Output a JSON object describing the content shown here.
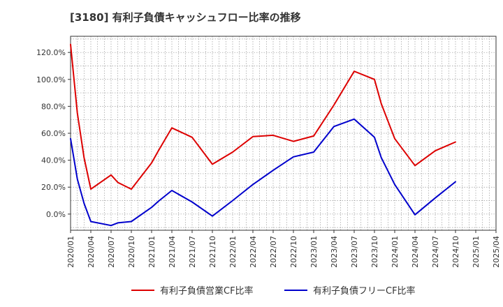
{
  "chart_data": {
    "type": "line",
    "title": "[3180]  有利子負債キャッシュフロー比率の推移",
    "xlabel": "",
    "ylabel": "",
    "ylim": [
      -12,
      132
    ],
    "y_ticks": [
      "0.0%",
      "20.0%",
      "40.0%",
      "60.0%",
      "80.0%",
      "100.0%",
      "120.0%"
    ],
    "x_ticks": [
      "2020/01",
      "2020/04",
      "2020/07",
      "2020/10",
      "2021/01",
      "2021/04",
      "2021/07",
      "2021/10",
      "2022/01",
      "2022/04",
      "2022/07",
      "2022/10",
      "2023/01",
      "2023/04",
      "2023/07",
      "2023/10",
      "2024/01",
      "2024/04",
      "2024/07",
      "2024/10",
      "2025/01",
      "2025/04"
    ],
    "x_months": [
      "2020/01",
      "2020/02",
      "2020/03",
      "2020/04",
      "2020/05",
      "2020/06",
      "2020/07",
      "2020/08",
      "2020/09",
      "2020/10",
      "2021/01",
      "2021/04",
      "2021/07",
      "2021/10",
      "2022/01",
      "2022/04",
      "2022/07",
      "2022/10",
      "2023/01",
      "2023/04",
      "2023/07",
      "2023/10",
      "2023/11",
      "2024/01",
      "2024/04",
      "2024/07",
      "2024/10"
    ],
    "grid": true,
    "legend_position": "bottom",
    "colors": {
      "red": "#dd0000",
      "blue": "#0000cc",
      "grid": "#999999",
      "axis": "#333333"
    },
    "series": [
      {
        "name": "有利子負債営業CF比率",
        "color": "#dd0000",
        "points": [
          [
            "2020/01",
            126
          ],
          [
            "2020/02",
            75
          ],
          [
            "2020/03",
            42
          ],
          [
            "2020/04",
            18.5
          ],
          [
            "2020/07",
            29
          ],
          [
            "2020/08",
            23.5
          ],
          [
            "2020/10",
            18.5
          ],
          [
            "2021/01",
            38
          ],
          [
            "2021/02",
            47
          ],
          [
            "2021/04",
            64
          ],
          [
            "2021/07",
            57
          ],
          [
            "2021/10",
            37
          ],
          [
            "2022/01",
            46
          ],
          [
            "2022/04",
            57.5
          ],
          [
            "2022/07",
            58.5
          ],
          [
            "2022/10",
            54
          ],
          [
            "2023/01",
            58
          ],
          [
            "2023/04",
            81
          ],
          [
            "2023/07",
            106
          ],
          [
            "2023/10",
            100
          ],
          [
            "2023/11",
            82
          ],
          [
            "2024/01",
            56
          ],
          [
            "2024/04",
            36
          ],
          [
            "2024/07",
            47
          ],
          [
            "2024/10",
            53.5
          ]
        ]
      },
      {
        "name": "有利子負債フリーCF比率",
        "color": "#0000cc",
        "points": [
          [
            "2020/01",
            56
          ],
          [
            "2020/02",
            26
          ],
          [
            "2020/03",
            8
          ],
          [
            "2020/04",
            -5.5
          ],
          [
            "2020/07",
            -8.5
          ],
          [
            "2020/08",
            -6.5
          ],
          [
            "2020/10",
            -5.5
          ],
          [
            "2021/01",
            5
          ],
          [
            "2021/02",
            9.5
          ],
          [
            "2021/04",
            17.5
          ],
          [
            "2021/07",
            9
          ],
          [
            "2021/10",
            -1.5
          ],
          [
            "2022/01",
            10
          ],
          [
            "2022/04",
            22
          ],
          [
            "2022/07",
            32.5
          ],
          [
            "2022/10",
            42.5
          ],
          [
            "2023/01",
            46
          ],
          [
            "2023/04",
            65
          ],
          [
            "2023/07",
            70.5
          ],
          [
            "2023/10",
            57
          ],
          [
            "2023/11",
            42
          ],
          [
            "2024/01",
            22
          ],
          [
            "2024/04",
            -0.5
          ],
          [
            "2024/07",
            12
          ],
          [
            "2024/10",
            24
          ]
        ]
      }
    ]
  }
}
